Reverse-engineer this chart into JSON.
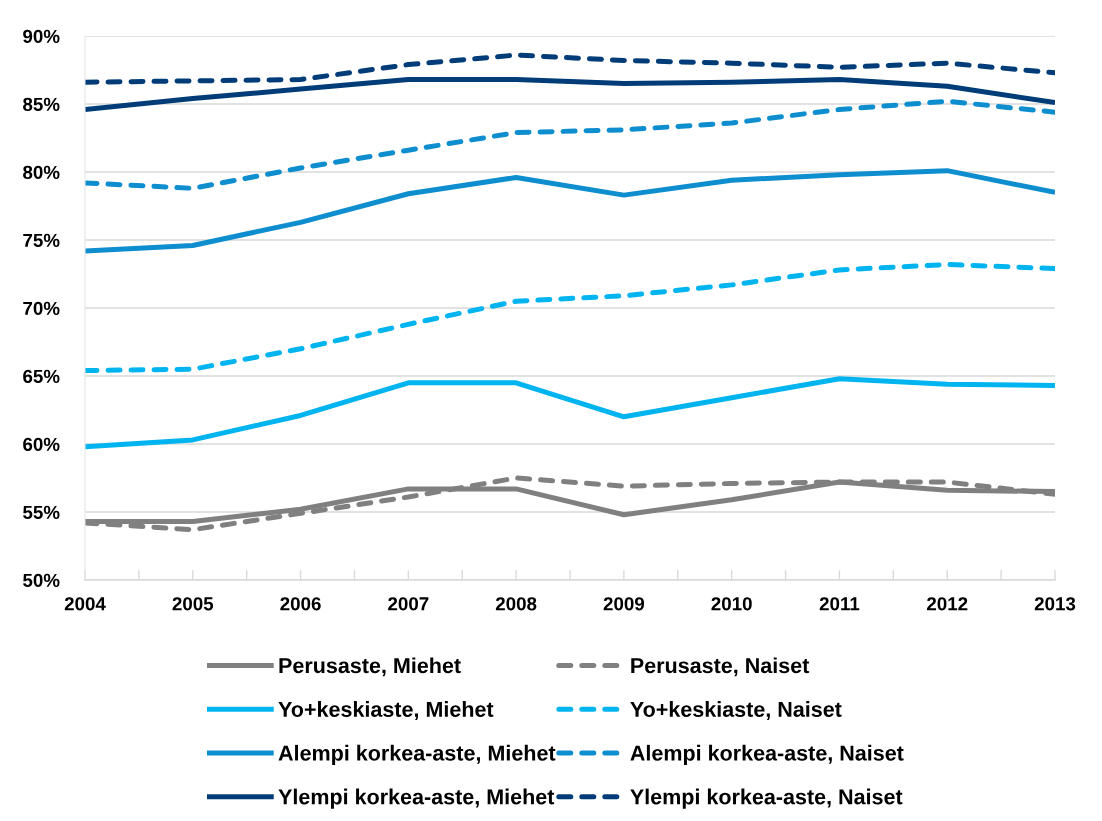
{
  "chart_data": {
    "type": "line",
    "categories": [
      "2004",
      "2005",
      "2006",
      "2007",
      "2008",
      "2009",
      "2010",
      "2011",
      "2012",
      "2013"
    ],
    "ylim": [
      50,
      90
    ],
    "yticks": [
      {
        "value": 50,
        "label": "50%"
      },
      {
        "value": 55,
        "label": "55%"
      },
      {
        "value": 60,
        "label": "60%"
      },
      {
        "value": 65,
        "label": "65%"
      },
      {
        "value": 70,
        "label": "70%"
      },
      {
        "value": 75,
        "label": "75%"
      },
      {
        "value": 80,
        "label": "80%"
      },
      {
        "value": 85,
        "label": "85%"
      },
      {
        "value": 90,
        "label": "90%"
      }
    ],
    "grid": "y",
    "legend": "bottom",
    "series": [
      {
        "name": "Perusaste, Miehet",
        "color": "#808080",
        "line_style": "solid",
        "values": [
          54.3,
          54.3,
          55.2,
          56.7,
          56.7,
          54.8,
          55.9,
          57.2,
          56.6,
          56.5
        ]
      },
      {
        "name": "Perusaste, Naiset",
        "color": "#808080",
        "line_style": "dashed",
        "values": [
          54.2,
          53.7,
          54.9,
          56.1,
          57.5,
          56.9,
          57.1,
          57.2,
          57.2,
          56.3
        ]
      },
      {
        "name": "Yo+keskiaste, Miehet",
        "color": "#00b4f0",
        "line_style": "solid",
        "values": [
          59.8,
          60.3,
          62.1,
          64.5,
          64.5,
          62.0,
          63.4,
          64.8,
          64.4,
          64.3
        ]
      },
      {
        "name": "Yo+keskiaste, Naiset",
        "color": "#00b4f0",
        "line_style": "dashed",
        "values": [
          65.4,
          65.5,
          67.0,
          68.8,
          70.5,
          70.9,
          71.7,
          72.8,
          73.2,
          72.9
        ]
      },
      {
        "name": "Alempi korkea-aste, Miehet",
        "color": "#0e8ecf",
        "line_style": "solid",
        "values": [
          74.2,
          74.6,
          76.3,
          78.4,
          79.6,
          78.3,
          79.4,
          79.8,
          80.1,
          78.5
        ]
      },
      {
        "name": "Alempi korkea-aste, Naiset",
        "color": "#0e8ecf",
        "line_style": "dashed",
        "values": [
          79.2,
          78.8,
          80.3,
          81.6,
          82.9,
          83.1,
          83.6,
          84.6,
          85.2,
          84.4
        ]
      },
      {
        "name": "Ylempi korkea-aste, Miehet",
        "color": "#003c78",
        "line_style": "solid",
        "values": [
          84.6,
          85.4,
          86.1,
          86.8,
          86.8,
          86.5,
          86.6,
          86.8,
          86.3,
          85.1
        ]
      },
      {
        "name": "Ylempi korkea-aste, Naiset",
        "color": "#003c78",
        "line_style": "dashed",
        "values": [
          86.6,
          86.7,
          86.8,
          87.9,
          88.6,
          88.2,
          88.0,
          87.7,
          88.0,
          87.3
        ]
      }
    ]
  }
}
